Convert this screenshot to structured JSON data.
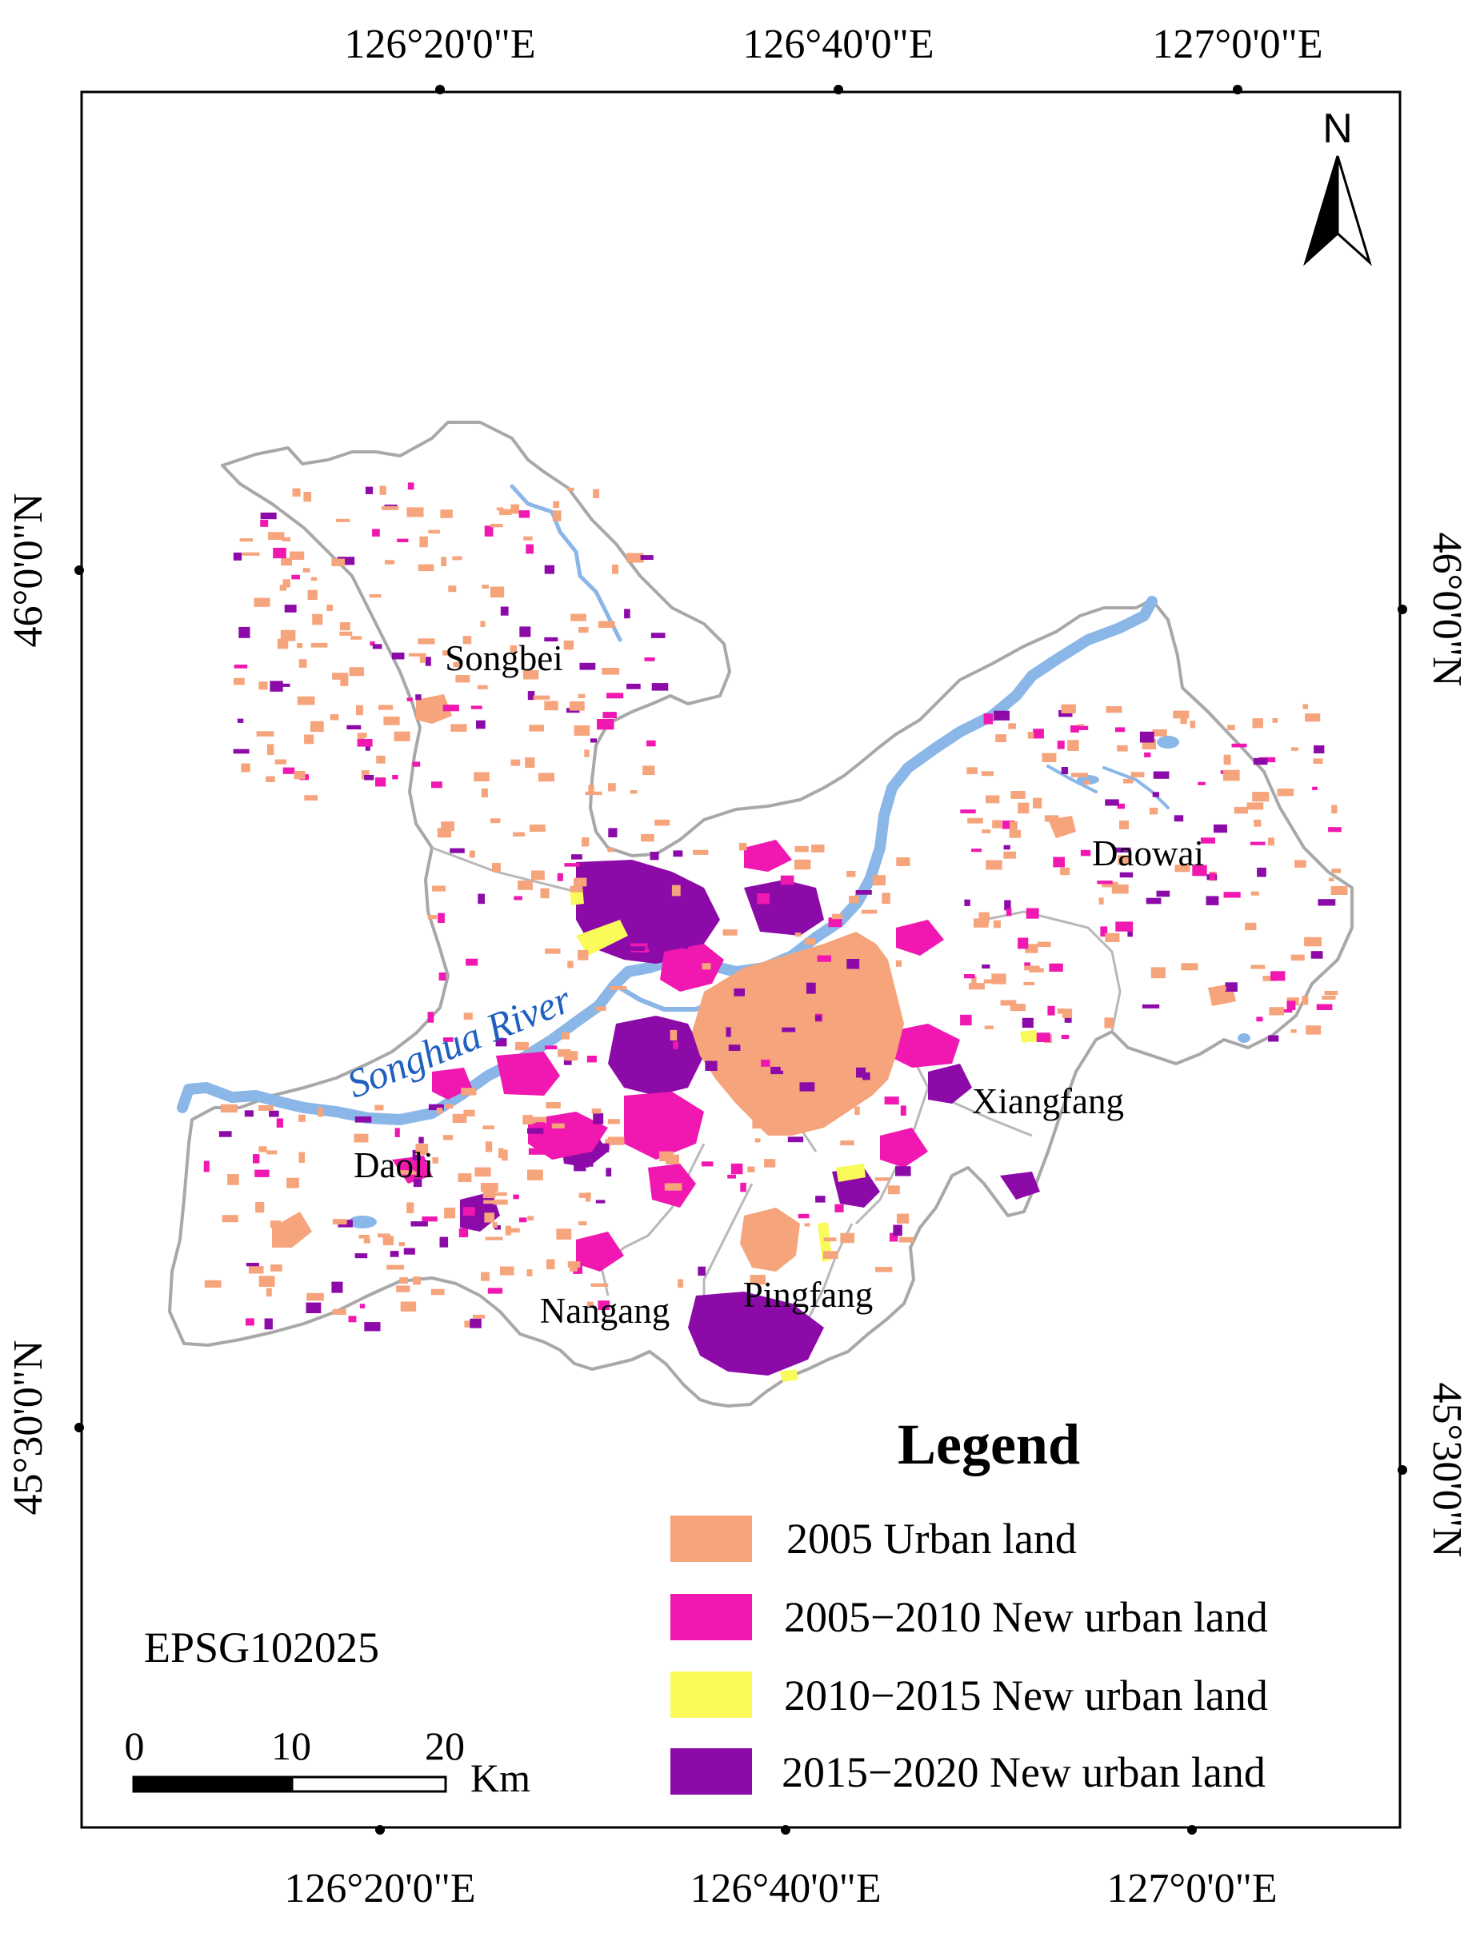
{
  "graticule": {
    "top": [
      "126°20'0\"E",
      "126°40'0\"E",
      "127°0'0\"E"
    ],
    "bottom": [
      "126°20'0\"E",
      "126°40'0\"E",
      "127°0'0\"E"
    ],
    "left": [
      "46°0'0\"N",
      "45°30'0\"N"
    ],
    "right": [
      "46°0'0\"N",
      "45°30'0\"N"
    ]
  },
  "north_arrow": {
    "label": "N"
  },
  "places": {
    "songbei": "Songbei",
    "daowai": "Daowai",
    "xiangfang": "Xiangfang",
    "daoli": "Daoli",
    "nangang": "Nangang",
    "pingfang": "Pingfang",
    "river": "Songhua River"
  },
  "legend": {
    "title": "Legend",
    "items": [
      {
        "label": "2005 Urban land",
        "color": "#f5a47c"
      },
      {
        "label": "2005−2010 New urban land",
        "color": "#f018b0"
      },
      {
        "label": "2010−2015 New urban land",
        "color": "#fafa5a"
      },
      {
        "label": "2015−2020 New urban land",
        "color": "#8c0aa8"
      }
    ]
  },
  "crs": "EPSG102025",
  "scale_bar": {
    "ticks": [
      "0",
      "10",
      "20"
    ],
    "unit": "Km"
  },
  "colors": {
    "boundary": "#a8a8a8",
    "water": "#8ab6e8",
    "frame": "#000000"
  }
}
